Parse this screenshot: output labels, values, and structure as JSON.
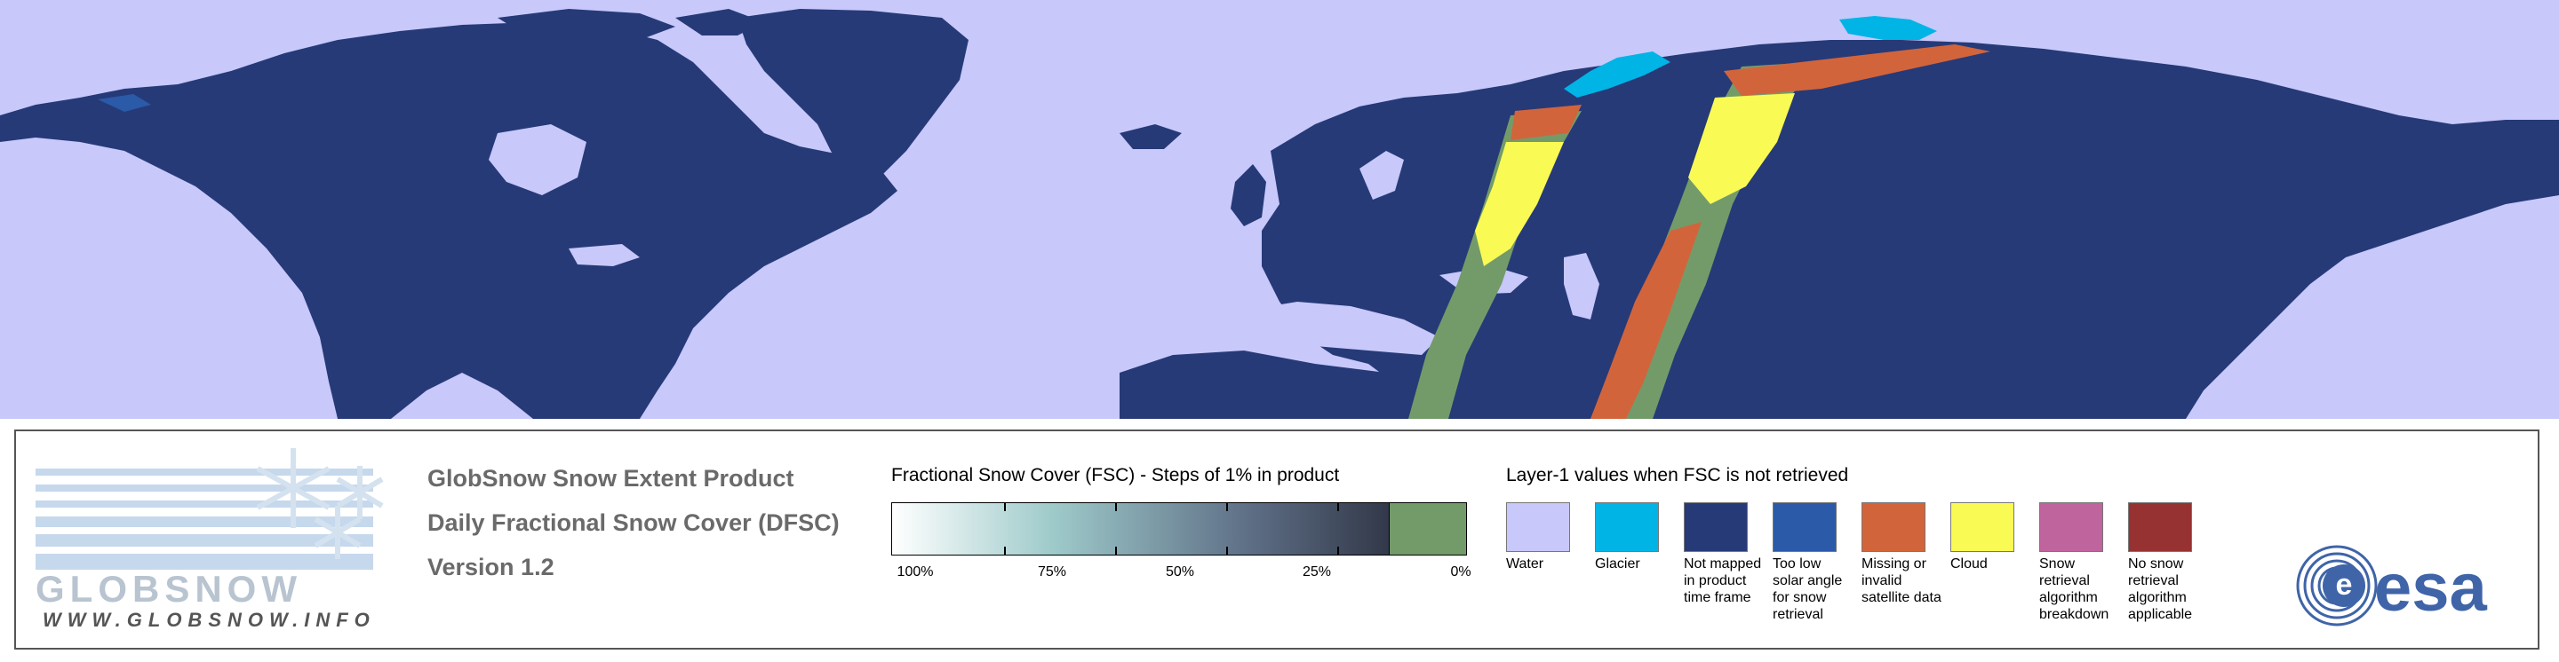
{
  "product": {
    "title": "GlobSnow Snow Extent Product",
    "subtitle": "Daily Fractional Snow Cover (DFSC)",
    "version": "Version 1.2"
  },
  "logo": {
    "name": "GLOBSNOW",
    "url": "WWW.GLOBSNOW.INFO"
  },
  "fsc_scale": {
    "title": "Fractional Snow Cover (FSC) - Steps of 1% in product",
    "ticks": [
      "100%",
      "75%",
      "50%",
      "25%",
      "0%"
    ]
  },
  "layer1": {
    "title": "Layer-1 values when FSC is not retrieved",
    "classes": [
      {
        "label": "Water",
        "color": "#c8c8fa"
      },
      {
        "label": "Glacier",
        "color": "#00b4e6"
      },
      {
        "label": "Not mapped in product time frame",
        "color": "#263a78"
      },
      {
        "label": "Too low solar angle for snow retrieval",
        "color": "#2a5aa8"
      },
      {
        "label": "Missing or invalid satellite data",
        "color": "#d2643c"
      },
      {
        "label": "Cloud",
        "color": "#fafa55"
      },
      {
        "label": "Snow retrieval algorithm breakdown",
        "color": "#c0649e"
      },
      {
        "label": "No snow retrieval algorithm applicable",
        "color": "#963232"
      }
    ]
  },
  "colors": {
    "water": "#c8c8fa",
    "land_unmapped": "#263a78",
    "snow_free": "#739b6a"
  },
  "esa_logo": {
    "text": "esa"
  }
}
